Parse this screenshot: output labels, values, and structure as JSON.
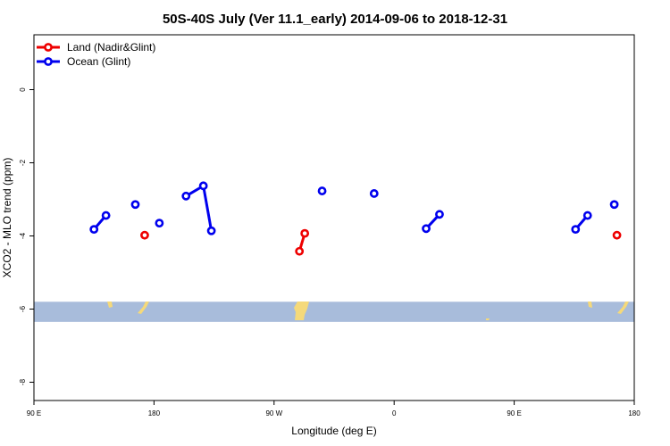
{
  "chart_data": {
    "type": "line",
    "title": "50S-40S July (Ver 11.1_early)   2014-09-06 to 2018-12-31",
    "xlabel": "Longitude (deg E)",
    "ylabel": "XCO2 - MLO trend (ppm)",
    "xlim": [
      90,
      540
    ],
    "ylim": [
      -8.5,
      1.5
    ],
    "x_ticks": [
      {
        "value": 90,
        "label": "90 E"
      },
      {
        "value": 180,
        "label": "180"
      },
      {
        "value": 270,
        "label": "90 W"
      },
      {
        "value": 360,
        "label": "0"
      },
      {
        "value": 450,
        "label": "90 E"
      },
      {
        "value": 540,
        "label": "180"
      }
    ],
    "y_ticks": [
      {
        "value": 0,
        "label": "0"
      },
      {
        "value": -2,
        "label": "-2"
      },
      {
        "value": -4,
        "label": "-4"
      },
      {
        "value": -6,
        "label": "-6"
      },
      {
        "value": -8,
        "label": "-8"
      }
    ],
    "map_band": {
      "y_range": [
        -6.35,
        -5.8
      ],
      "color": "#a8bcdb",
      "land_color": "#f5d97a"
    },
    "legend_position": "top-left",
    "series": [
      {
        "name": "Land (Nadir&Glint)",
        "color": "#ee0000",
        "segments": [
          [
            [
              173,
              -3.98
            ]
          ],
          [
            [
              289,
              -4.42
            ],
            [
              293,
              -3.93
            ]
          ],
          [
            [
              527,
              -3.98
            ]
          ]
        ]
      },
      {
        "name": "Ocean (Glint)",
        "color": "#0000ee",
        "segments": [
          [
            [
              135,
              -3.82
            ],
            [
              144,
              -3.44
            ]
          ],
          [
            [
              166,
              -3.14
            ]
          ],
          [
            [
              184,
              -3.65
            ]
          ],
          [
            [
              204,
              -2.91
            ],
            [
              217,
              -2.63
            ],
            [
              223,
              -3.86
            ]
          ],
          [
            [
              306,
              -2.77
            ]
          ],
          [
            [
              345,
              -2.84
            ]
          ],
          [
            [
              384,
              -3.8
            ],
            [
              394,
              -3.41
            ]
          ],
          [
            [
              496,
              -3.82
            ],
            [
              505,
              -3.44
            ]
          ],
          [
            [
              525,
              -3.14
            ]
          ]
        ]
      }
    ]
  }
}
